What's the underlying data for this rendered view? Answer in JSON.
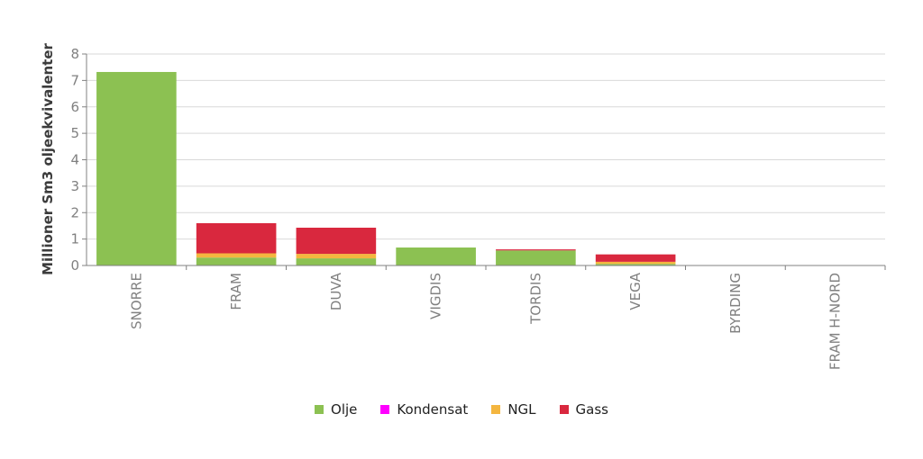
{
  "chart_data": {
    "type": "bar",
    "stacked": true,
    "ylabel": "Millioner Sm3 oljeekvivalenter",
    "xlabel": "",
    "ylim": [
      0,
      8
    ],
    "yticks": [
      0,
      1,
      2,
      3,
      4,
      5,
      6,
      7,
      8
    ],
    "grid": true,
    "legend_position": "bottom",
    "categories": [
      "SNORRE",
      "FRAM",
      "DUVA",
      "VIGDIS",
      "TORDIS",
      "VEGA",
      "BYRDING",
      "FRAM H-NORD"
    ],
    "series": [
      {
        "name": "Olje",
        "color": "#8cc152",
        "values": [
          7.32,
          0.3,
          0.27,
          0.68,
          0.57,
          0.06,
          0,
          0
        ]
      },
      {
        "name": "Kondensat",
        "color": "#ff00ff",
        "values": [
          0,
          0,
          0,
          0,
          0,
          0,
          0,
          0
        ]
      },
      {
        "name": "NGL",
        "color": "#f4b63f",
        "values": [
          0,
          0.16,
          0.17,
          0,
          0,
          0.08,
          0,
          0
        ]
      },
      {
        "name": "Gass",
        "color": "#d9283e",
        "values": [
          0,
          1.14,
          0.99,
          0,
          0.04,
          0.28,
          0,
          0
        ]
      }
    ]
  }
}
